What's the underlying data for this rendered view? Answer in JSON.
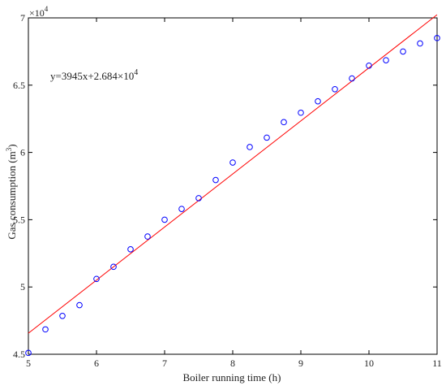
{
  "chart_data": {
    "type": "scatter",
    "title": "",
    "xlabel": "Boiler running time (h)",
    "ylabel_main": "Gas consumption (m",
    "ylabel_sup": "3",
    "ylabel_close": ")",
    "xlim": [
      5,
      11
    ],
    "ylim": [
      45000,
      70000
    ],
    "x_ticks": [
      5,
      6,
      7,
      8,
      9,
      10,
      11
    ],
    "x_tick_labels": [
      "5",
      "6",
      "7",
      "8",
      "9",
      "10",
      "11"
    ],
    "y_ticks": [
      45000,
      50000,
      55000,
      60000,
      65000,
      70000
    ],
    "y_tick_labels": [
      "4.5",
      "5",
      "5.5",
      "6",
      "6.5",
      "7"
    ],
    "y_multiplier_base": "×10",
    "y_multiplier_exp": "4",
    "grid": false,
    "series": [
      {
        "type": "scatter",
        "color": "#0000ff",
        "x": [
          5,
          5.25,
          5.5,
          5.75,
          6,
          6.25,
          6.5,
          6.75,
          7,
          7.25,
          7.5,
          7.75,
          8,
          8.25,
          8.5,
          8.75,
          9,
          9.25,
          9.5,
          9.75,
          10,
          10.25,
          10.5,
          10.75,
          11
        ],
        "y": [
          45100,
          46850,
          47850,
          48650,
          50600,
          51500,
          52800,
          53750,
          55000,
          55800,
          56600,
          57950,
          59250,
          60400,
          61100,
          62250,
          62950,
          63800,
          64700,
          65500,
          66450,
          66850,
          67500,
          68100,
          68500
        ]
      },
      {
        "type": "line",
        "color": "#ff0000",
        "slope": 3945,
        "intercept": 26840,
        "x": [
          5,
          11
        ],
        "y": [
          46565,
          70235
        ]
      }
    ],
    "annotation": {
      "text_main": "y=3945x+2.684×10",
      "text_sup": "4"
    }
  }
}
